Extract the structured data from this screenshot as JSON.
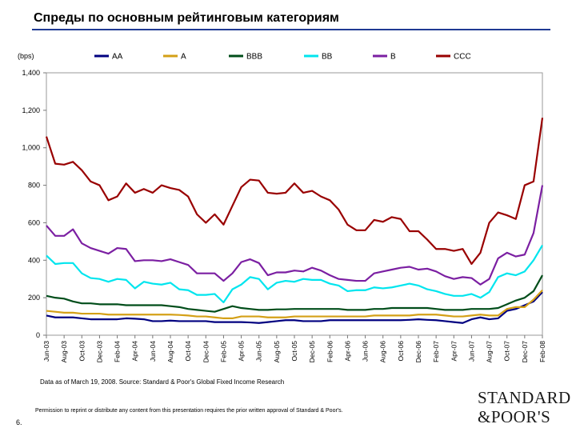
{
  "page": {
    "title": "Спреды по основным рейтинговым категориям",
    "source": "Data as of March 19, 2008. Source: Standard & Poor's Global Fixed Income Research",
    "page_number": "6.",
    "permission": "Permission to reprint or distribute any content from this presentation requires the prior written approval of Standard & Poor's.",
    "logo_line1": "STANDARD",
    "logo_line2": "&POOR'S"
  },
  "chart_data": {
    "type": "line",
    "title": "Спреды по основным рейтинговым категориям",
    "ylabel": "(bps)",
    "xlabel": "",
    "ylim": [
      0,
      1400
    ],
    "yticks": [
      0,
      200,
      400,
      600,
      800,
      1000,
      1200,
      1400
    ],
    "ytick_labels": [
      "0",
      "200",
      "400",
      "600",
      "800",
      "1,000",
      "1,200",
      "1,400"
    ],
    "grid": false,
    "legend_position": "top",
    "tick_labels": [
      "Jun-03",
      "Aug-03",
      "Oct-03",
      "Dec-03",
      "Feb-04",
      "Apr-04",
      "Jun-04",
      "Aug-04",
      "Oct-04",
      "Dec-04",
      "Feb-05",
      "Apr-05",
      "Jun-05",
      "Aug-05",
      "Oct-05",
      "Dec-05",
      "Feb-06",
      "Apr-06",
      "Jun-06",
      "Aug-06",
      "Oct-06",
      "Dec-06",
      "Feb-07",
      "Apr-07",
      "Jun-07",
      "Aug-07",
      "Oct-07",
      "Dec-07",
      "Feb-08"
    ],
    "n_points": 57,
    "series": [
      {
        "name": "AA",
        "color": "#000080",
        "values": [
          105,
          95,
          95,
          95,
          90,
          85,
          85,
          85,
          85,
          90,
          88,
          85,
          75,
          75,
          78,
          75,
          75,
          75,
          75,
          70,
          70,
          70,
          70,
          68,
          65,
          70,
          75,
          80,
          80,
          75,
          75,
          75,
          80,
          80,
          80,
          80,
          80,
          80,
          80,
          80,
          80,
          82,
          85,
          82,
          80,
          75,
          70,
          65,
          85,
          95,
          85,
          90,
          130,
          140,
          160,
          180,
          230
        ]
      },
      {
        "name": "A",
        "color": "#d4a017",
        "values": [
          130,
          125,
          120,
          120,
          115,
          115,
          115,
          110,
          110,
          110,
          110,
          110,
          110,
          110,
          110,
          108,
          105,
          100,
          100,
          95,
          90,
          90,
          100,
          100,
          100,
          95,
          95,
          95,
          100,
          100,
          100,
          100,
          100,
          100,
          100,
          100,
          100,
          105,
          105,
          105,
          105,
          105,
          110,
          110,
          110,
          105,
          100,
          100,
          105,
          110,
          105,
          105,
          140,
          150,
          150,
          190,
          240
        ]
      },
      {
        "name": "BBB",
        "color": "#004d1a",
        "values": [
          210,
          200,
          195,
          180,
          170,
          170,
          165,
          165,
          165,
          160,
          160,
          160,
          160,
          160,
          155,
          150,
          140,
          135,
          130,
          125,
          140,
          155,
          145,
          140,
          135,
          135,
          138,
          138,
          140,
          140,
          140,
          140,
          140,
          140,
          135,
          135,
          135,
          140,
          140,
          145,
          145,
          145,
          145,
          145,
          140,
          135,
          135,
          135,
          140,
          140,
          140,
          145,
          165,
          185,
          200,
          235,
          320
        ]
      },
      {
        "name": "BB",
        "color": "#00e5ee",
        "values": [
          425,
          380,
          385,
          385,
          330,
          305,
          300,
          285,
          300,
          295,
          250,
          285,
          275,
          270,
          280,
          245,
          240,
          215,
          215,
          220,
          175,
          245,
          270,
          310,
          300,
          245,
          280,
          290,
          285,
          300,
          295,
          295,
          275,
          265,
          235,
          240,
          240,
          255,
          250,
          255,
          265,
          275,
          265,
          245,
          235,
          220,
          210,
          210,
          220,
          200,
          230,
          310,
          330,
          320,
          340,
          400,
          480
        ]
      },
      {
        "name": "B",
        "color": "#7b1fa2",
        "values": [
          585,
          530,
          530,
          565,
          490,
          465,
          450,
          435,
          465,
          460,
          395,
          400,
          400,
          395,
          405,
          390,
          375,
          330,
          330,
          330,
          290,
          330,
          390,
          405,
          385,
          320,
          335,
          335,
          345,
          340,
          360,
          345,
          320,
          300,
          295,
          290,
          290,
          330,
          340,
          350,
          360,
          365,
          350,
          355,
          340,
          315,
          300,
          310,
          305,
          270,
          300,
          410,
          440,
          420,
          430,
          545,
          800
        ]
      },
      {
        "name": "CCC",
        "color": "#990000",
        "values": [
          1060,
          915,
          910,
          925,
          880,
          820,
          800,
          720,
          740,
          810,
          760,
          780,
          760,
          800,
          785,
          775,
          740,
          645,
          600,
          645,
          590,
          690,
          790,
          830,
          825,
          760,
          755,
          760,
          810,
          760,
          770,
          740,
          720,
          670,
          590,
          560,
          560,
          615,
          605,
          630,
          620,
          555,
          555,
          510,
          460,
          460,
          450,
          460,
          380,
          440,
          600,
          655,
          640,
          620,
          800,
          820,
          1160
        ]
      }
    ]
  }
}
